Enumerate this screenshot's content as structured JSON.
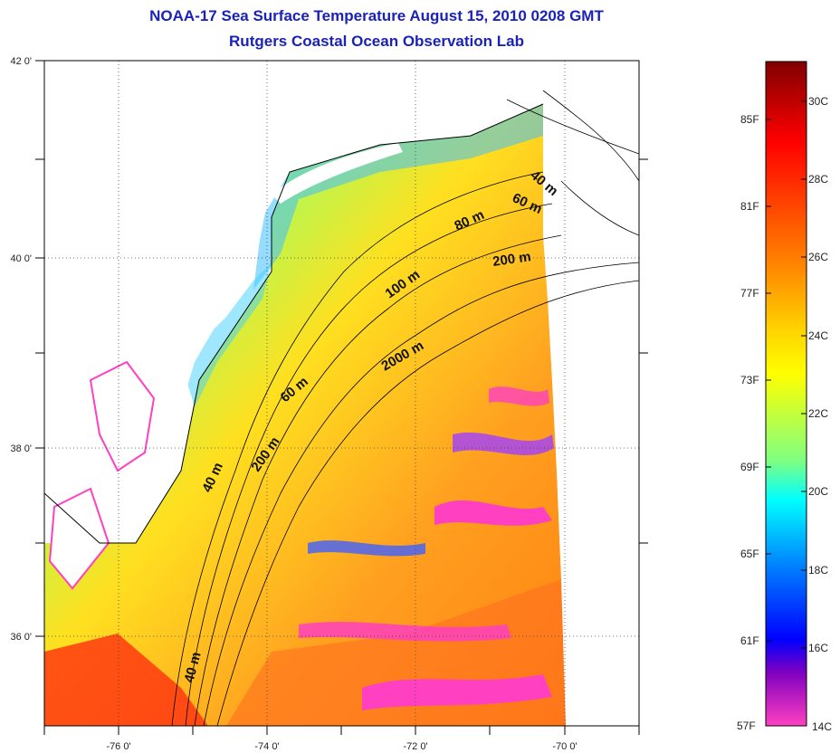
{
  "title": {
    "line1": "NOAA-17 Sea Surface Temperature August 15, 2010 0208 GMT",
    "line2": "Rutgers Coastal Ocean Observation Lab"
  },
  "map": {
    "lon_ticks": [
      "-76 0'",
      "-74 0'",
      "-72 0'",
      "-70 0'"
    ],
    "lat_ticks": [
      "42 0'",
      "40 0'",
      "38 0'",
      "36 0'"
    ],
    "depth_contours": [
      "40 m",
      "60 m",
      "80 m",
      "200 m",
      "100 m",
      "2000 m",
      "60 m",
      "200 m",
      "40 m",
      "40 m"
    ]
  },
  "colorbar": {
    "fahrenheit": [
      "85F",
      "81F",
      "77F",
      "73F",
      "69F",
      "65F",
      "61F",
      "57F"
    ],
    "celsius": [
      "30C",
      "28C",
      "26C",
      "24C",
      "22C",
      "20C",
      "18C",
      "16C",
      "14C"
    ],
    "colors": [
      "#800000",
      "#ff0000",
      "#ff8000",
      "#ffff00",
      "#80ff80",
      "#00ffff",
      "#0080ff",
      "#0000ff",
      "#8000c0",
      "#ff40c0"
    ]
  }
}
